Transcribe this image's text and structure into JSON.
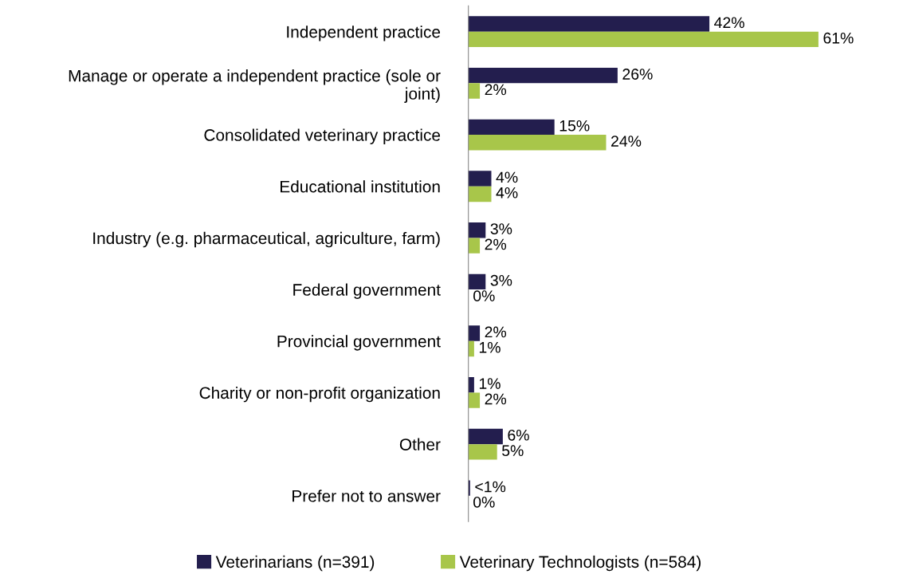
{
  "chart_data": {
    "type": "bar",
    "orientation": "horizontal",
    "categories": [
      "Independent practice",
      "Manage or operate a independent practice (sole or\njoint)",
      "Consolidated veterinary practice",
      "Educational institution",
      "Industry (e.g. pharmaceutical, agriculture, farm)",
      "Federal government",
      "Provincial government",
      "Charity or non-profit organization",
      "Other",
      "Prefer not to answer"
    ],
    "series": [
      {
        "name": "Veterinarians (n=391)",
        "color": "#231e4e",
        "values": [
          42,
          26,
          15,
          4,
          3,
          3,
          2,
          1,
          6,
          0.3
        ],
        "value_labels": [
          "42%",
          "26%",
          "15%",
          "4%",
          "3%",
          "3%",
          "2%",
          "1%",
          "6%",
          "<1%"
        ]
      },
      {
        "name": "Veterinary Technologists (n=584)",
        "color": "#a8c64a",
        "values": [
          61,
          2,
          24,
          4,
          2,
          0,
          1,
          2,
          5,
          0
        ],
        "value_labels": [
          "61%",
          "2%",
          "24%",
          "4%",
          "2%",
          "0%",
          "1%",
          "2%",
          "5%",
          "0%"
        ]
      }
    ],
    "legend": "bottom",
    "grid": false
  }
}
